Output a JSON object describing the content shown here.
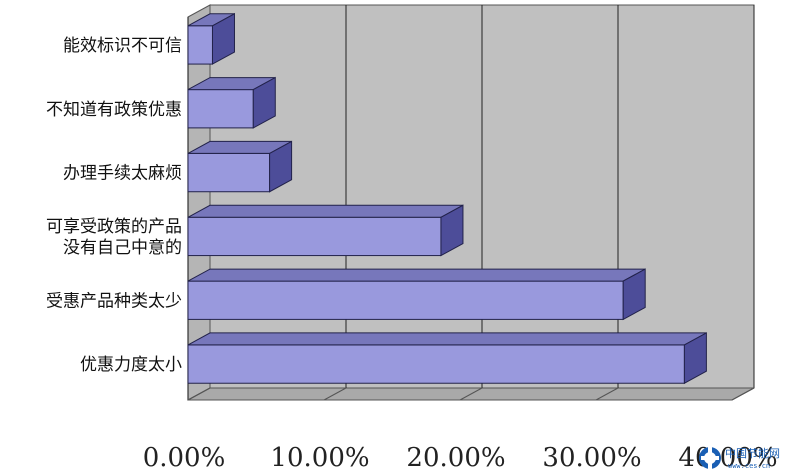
{
  "chart_data": {
    "type": "bar",
    "orientation": "horizontal",
    "three_d": true,
    "categories": [
      "能效标识不可信",
      "不知道有政策优惠",
      "办理手续太麻烦",
      "可享受政策的产品\n没有自己中意的",
      "受惠产品种类太少",
      "优惠力度太小"
    ],
    "values": [
      1.8,
      4.8,
      6.0,
      18.6,
      32.0,
      36.5
    ],
    "xlim": [
      0,
      40
    ],
    "xticks": [
      0,
      10,
      20,
      30,
      40
    ],
    "xtick_labels": [
      "0.00%",
      "10.00%",
      "20.00%",
      "30.00%",
      "40.00%"
    ],
    "grid": true,
    "colors": {
      "bar_front": "#9999dd",
      "bar_top": "#7777bb",
      "bar_side": "#4d4d99",
      "bar_edge": "#22224a",
      "wall": "#c0c0c0",
      "floor": "#a9a9a9",
      "gridline": "#222222"
    }
  },
  "watermark": {
    "text": "中国节能网",
    "sub": "www.ces.cn",
    "icon": "energy-logo-icon"
  }
}
